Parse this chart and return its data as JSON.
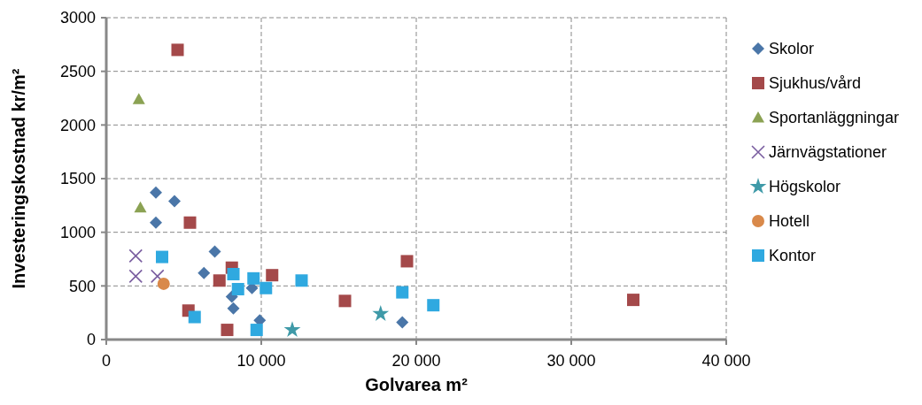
{
  "chart_data": {
    "type": "scatter",
    "xlabel": "Golvarea m²",
    "ylabel": "Investeringskostnad kr/m²",
    "xlim": [
      0,
      40000
    ],
    "ylim": [
      0,
      3000
    ],
    "xticks": [
      {
        "value": 0,
        "label": "0"
      },
      {
        "value": 10000,
        "label": "10 000"
      },
      {
        "value": 20000,
        "label": "20 000"
      },
      {
        "value": 30000,
        "label": "30 000"
      },
      {
        "value": 40000,
        "label": "40 000"
      }
    ],
    "yticks": [
      0,
      500,
      1000,
      1500,
      2000,
      2500,
      3000
    ],
    "grid": true,
    "legend": "right",
    "series": [
      {
        "name": "Skolor",
        "color": "#4a76a8",
        "marker": "diamond",
        "x": [
          3200,
          4400,
          3200,
          7000,
          6300,
          8100,
          8200,
          9400,
          9900,
          19100
        ],
        "values": [
          1370,
          1290,
          1090,
          820,
          620,
          400,
          290,
          480,
          180,
          160
        ]
      },
      {
        "name": "Sjukhus/vård",
        "color": "#a4494a",
        "marker": "square",
        "x": [
          4600,
          5400,
          8100,
          7300,
          10700,
          5300,
          7800,
          15400,
          19400,
          34000
        ],
        "values": [
          2700,
          1090,
          670,
          550,
          600,
          270,
          90,
          360,
          730,
          370
        ]
      },
      {
        "name": "Sportanläggningar",
        "color": "#8ba253",
        "marker": "triangle",
        "x": [
          2100,
          2200
        ],
        "values": [
          2240,
          1230
        ]
      },
      {
        "name": "Järnvägstationer",
        "color": "#7a5ea0",
        "marker": "cross",
        "x": [
          1900,
          1900,
          3300
        ],
        "values": [
          780,
          590,
          590
        ]
      },
      {
        "name": "Högskolor",
        "color": "#3f9aa8",
        "marker": "star",
        "x": [
          12000,
          17700
        ],
        "values": [
          90,
          240
        ]
      },
      {
        "name": "Hotell",
        "color": "#d9894a",
        "marker": "circle",
        "x": [
          3700
        ],
        "values": [
          520
        ]
      },
      {
        "name": "Kontor",
        "color": "#2fa9e0",
        "marker": "square",
        "x": [
          3600,
          5700,
          8200,
          8500,
          9500,
          10300,
          12600,
          9700,
          19100,
          21100
        ],
        "values": [
          770,
          210,
          610,
          470,
          570,
          480,
          550,
          90,
          440,
          320
        ]
      }
    ]
  }
}
